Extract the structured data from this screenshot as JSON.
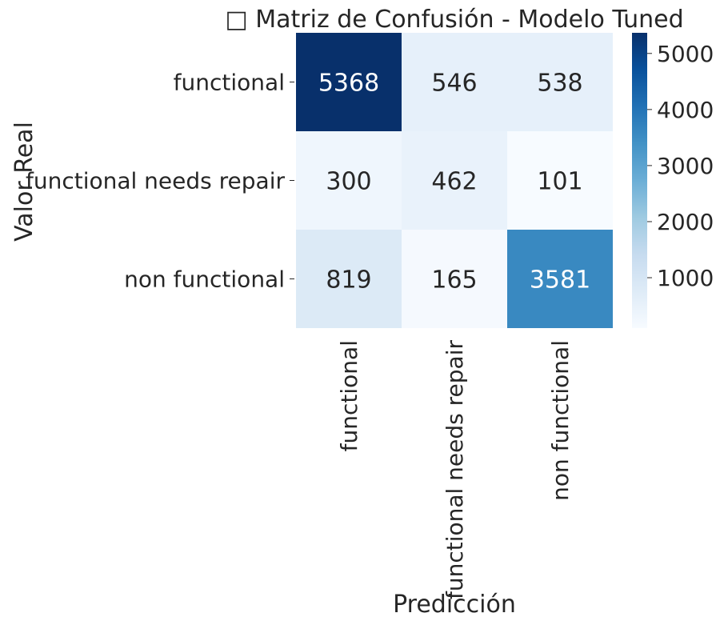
{
  "chart_data": {
    "type": "heatmap",
    "title": "□ Matriz de Confusión - Modelo Tuned",
    "xlabel": "Predicción",
    "ylabel": "Valor Real",
    "x_categories": [
      "functional",
      "functional needs repair",
      "non functional"
    ],
    "y_categories": [
      "functional",
      "functional needs repair",
      "non functional"
    ],
    "values": [
      [
        5368,
        546,
        538
      ],
      [
        300,
        462,
        101
      ],
      [
        819,
        165,
        3581
      ]
    ],
    "colorscale": "Blues",
    "colorbar": {
      "min": 101,
      "max": 5368,
      "ticks": [
        1000,
        2000,
        3000,
        4000,
        5000
      ],
      "tick_labels": [
        "1000",
        "2000",
        "3000",
        "4000",
        "5000"
      ]
    },
    "grid": false
  }
}
